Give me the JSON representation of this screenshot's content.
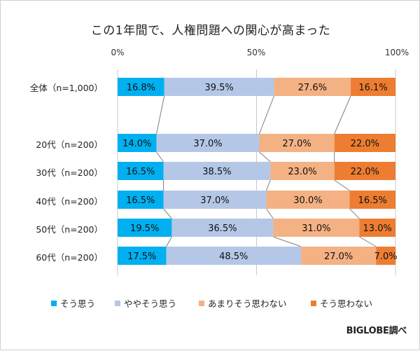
{
  "chart_data": {
    "type": "bar",
    "orientation": "horizontal",
    "stacked": "percent",
    "title": "この1年間で、人権問題への関心が高まった",
    "xlabel": "",
    "ylabel": "",
    "xlim": [
      0,
      100
    ],
    "x_ticks": [
      "0%",
      "50%",
      "100%"
    ],
    "grid": true,
    "legend_position": "bottom",
    "categories": [
      "全体（n=1,000）",
      "20代（n=200）",
      "30代（n=200）",
      "40代（n=200）",
      "50代（n=200）",
      "60代（n=200）"
    ],
    "series": [
      {
        "name": "そう思う",
        "color": "#00B0F0",
        "values": [
          16.8,
          14.0,
          16.5,
          16.5,
          19.5,
          17.5
        ]
      },
      {
        "name": "ややそう思う",
        "color": "#B4C7E7",
        "values": [
          39.5,
          37.0,
          38.5,
          37.0,
          36.5,
          48.5
        ]
      },
      {
        "name": "あまりそう思わない",
        "color": "#F4B183",
        "values": [
          27.6,
          27.0,
          23.0,
          30.0,
          31.0,
          27.0
        ]
      },
      {
        "name": "そう思わない",
        "color": "#ED7D31",
        "values": [
          16.1,
          22.0,
          22.0,
          16.5,
          13.0,
          7.0
        ]
      }
    ],
    "data_labels": [
      [
        "16.8%",
        "39.5%",
        "27.6%",
        "16.1%"
      ],
      [
        "14.0%",
        "37.0%",
        "27.0%",
        "22.0%"
      ],
      [
        "16.5%",
        "38.5%",
        "23.0%",
        "22.0%"
      ],
      [
        "16.5%",
        "37.0%",
        "30.0%",
        "16.5%"
      ],
      [
        "19.5%",
        "36.5%",
        "31.0%",
        "13.0%"
      ],
      [
        "17.5%",
        "48.5%",
        "27.0%",
        "7.0%"
      ]
    ],
    "series_lines": true,
    "source": "BIGLOBE調べ"
  }
}
